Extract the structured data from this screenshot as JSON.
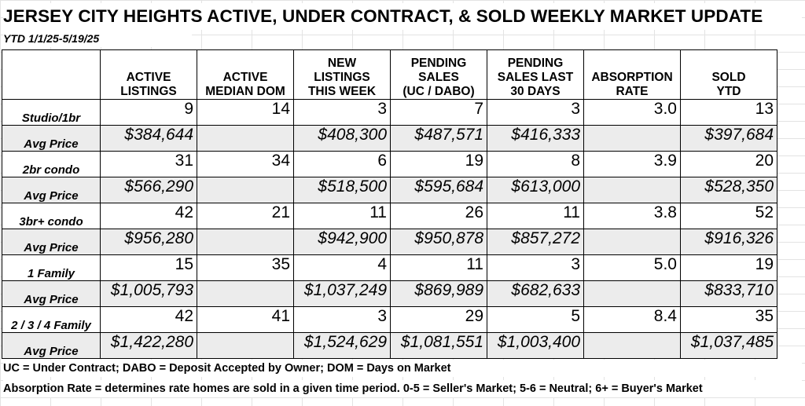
{
  "title": "JERSEY CITY HEIGHTS ACTIVE, UNDER CONTRACT, & SOLD WEEKLY MARKET UPDATE",
  "subtitle": "YTD 1/1/25-5/19/25",
  "columns": [
    [
      "ACTIVE",
      "LISTINGS"
    ],
    [
      "ACTIVE",
      "MEDIAN DOM"
    ],
    [
      "NEW",
      "LISTINGS",
      "THIS WEEK"
    ],
    [
      "PENDING",
      "SALES",
      "(UC / DABO)"
    ],
    [
      "PENDING",
      "SALES LAST",
      "30 DAYS"
    ],
    [
      "ABSORPTION",
      "RATE"
    ],
    [
      "SOLD",
      "YTD"
    ]
  ],
  "rows": [
    {
      "label": "Studio/1br",
      "cells": [
        "9",
        "14",
        "3",
        "7",
        "3",
        "3.0",
        "13"
      ]
    },
    {
      "label": "Avg Price",
      "cells": [
        "$384,644",
        "",
        "$408,300",
        "$487,571",
        "$416,333",
        "",
        "$397,684"
      ]
    },
    {
      "label": "2br condo",
      "cells": [
        "31",
        "34",
        "6",
        "19",
        "8",
        "3.9",
        "20"
      ]
    },
    {
      "label": "Avg Price",
      "cells": [
        "$566,290",
        "",
        "$518,500",
        "$595,684",
        "$613,000",
        "",
        "$528,350"
      ]
    },
    {
      "label": "3br+ condo",
      "cells": [
        "42",
        "21",
        "11",
        "26",
        "11",
        "3.8",
        "52"
      ]
    },
    {
      "label": "Avg Price",
      "cells": [
        "$956,280",
        "",
        "$942,900",
        "$950,878",
        "$857,272",
        "",
        "$916,326"
      ]
    },
    {
      "label": "1 Family",
      "cells": [
        "15",
        "35",
        "4",
        "11",
        "3",
        "5.0",
        "19"
      ]
    },
    {
      "label": "Avg Price",
      "cells": [
        "$1,005,793",
        "",
        "$1,037,249",
        "$869,989",
        "$682,633",
        "",
        "$833,710"
      ]
    },
    {
      "label": "2 / 3 / 4 Family",
      "cells": [
        "42",
        "41",
        "3",
        "29",
        "5",
        "8.4",
        "35"
      ]
    },
    {
      "label": "Avg Price",
      "cells": [
        "$1,422,280",
        "",
        "$1,524,629",
        "$1,081,551",
        "$1,003,400",
        "",
        "$1,037,485"
      ]
    }
  ],
  "footnotes": [
    "UC = Under Contract; DABO = Deposit Accepted by Owner; DOM = Days on Market",
    "Absorption Rate = determines rate homes are sold in a given time period.  0-5 = Seller's Market; 5-6 = Neutral; 6+ = Buyer's Market"
  ]
}
